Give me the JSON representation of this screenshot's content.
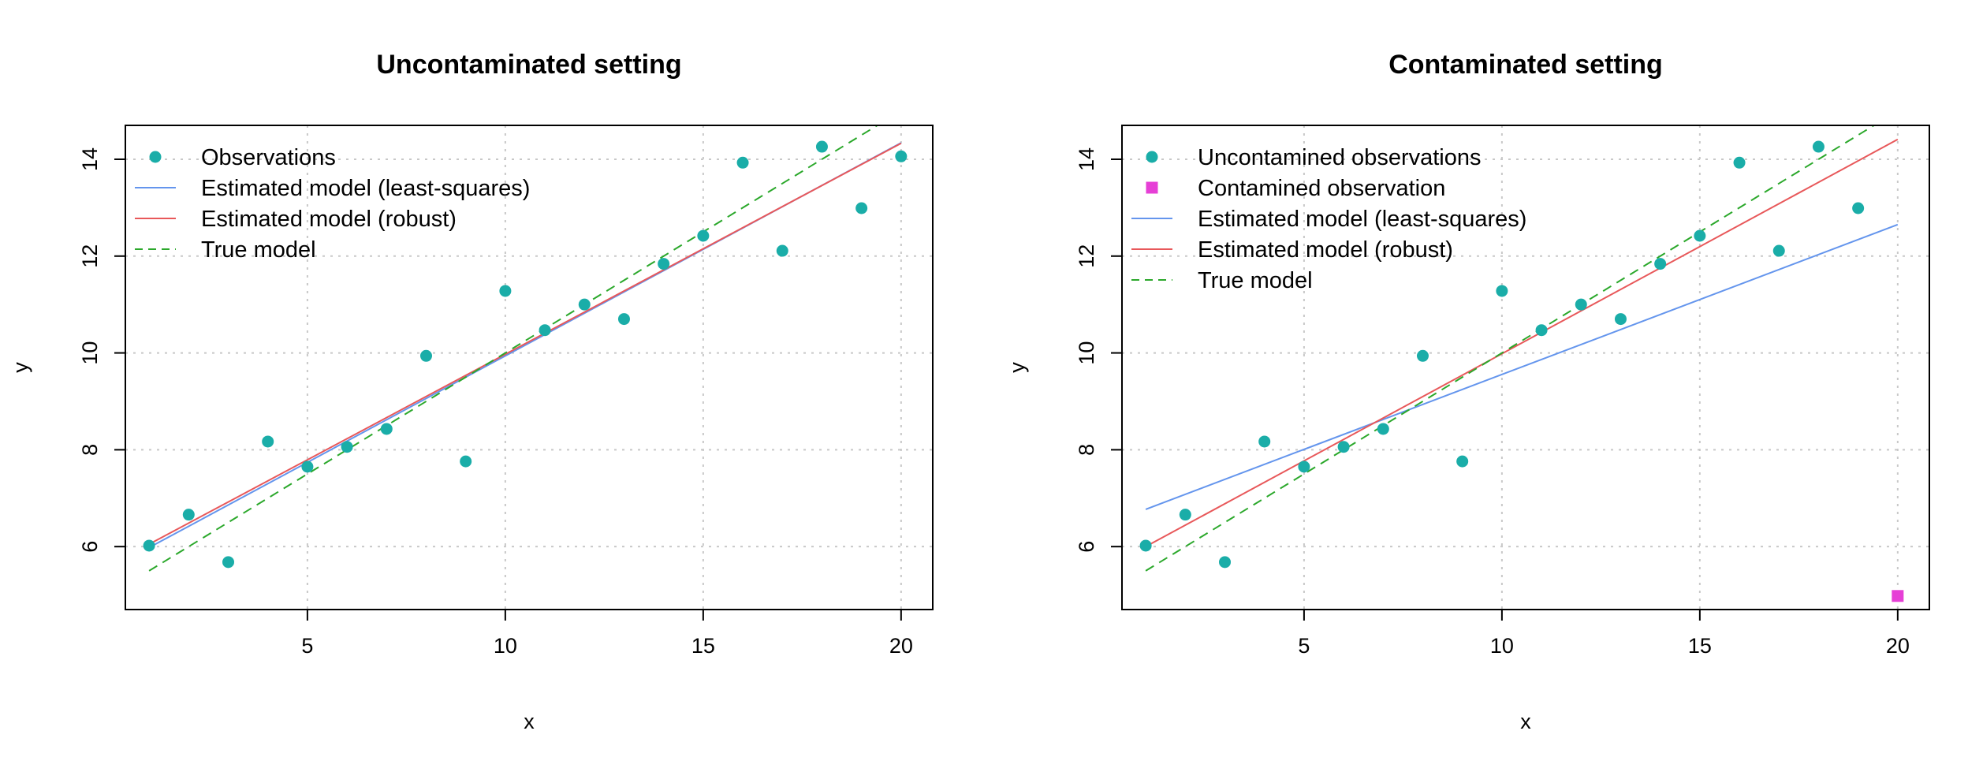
{
  "chart_data": [
    {
      "type": "scatter",
      "title": "Uncontaminated setting",
      "xlabel": "x",
      "ylabel": "y",
      "xlim": [
        0.4,
        20.8
      ],
      "ylim": [
        4.7,
        14.7
      ],
      "xticks": [
        5,
        10,
        15,
        20
      ],
      "yticks": [
        6,
        8,
        10,
        12,
        14
      ],
      "grid": true,
      "legend_position": "top-left",
      "series": [
        {
          "name": "Observations",
          "kind": "points",
          "color": "#1AADA8",
          "x": [
            1,
            2,
            3,
            4,
            5,
            6,
            7,
            8,
            9,
            10,
            11,
            12,
            13,
            14,
            15,
            16,
            17,
            18,
            19,
            20
          ],
          "y": [
            6.02,
            6.66,
            5.68,
            8.17,
            7.65,
            8.06,
            8.43,
            9.94,
            7.76,
            11.28,
            10.47,
            11.0,
            10.7,
            11.84,
            12.42,
            13.93,
            12.11,
            14.26,
            12.99,
            14.06
          ]
        },
        {
          "name": "Estimated model (least-squares)",
          "kind": "line",
          "style": "solid",
          "color": "#6495ED",
          "x": [
            1,
            20
          ],
          "y": [
            5.98,
            14.34
          ]
        },
        {
          "name": "Estimated model (robust)",
          "kind": "line",
          "style": "solid",
          "color": "#E8585A",
          "x": [
            1,
            20
          ],
          "y": [
            6.05,
            14.33
          ]
        },
        {
          "name": "True model",
          "kind": "line",
          "style": "dashed",
          "color": "#2BA82B",
          "x": [
            1,
            20
          ],
          "y": [
            5.5,
            15.0
          ]
        }
      ]
    },
    {
      "type": "scatter",
      "title": "Contaminated setting",
      "xlabel": "x",
      "ylabel": "y",
      "xlim": [
        0.4,
        20.8
      ],
      "ylim": [
        4.7,
        14.7
      ],
      "xticks": [
        5,
        10,
        15,
        20
      ],
      "yticks": [
        6,
        8,
        10,
        12,
        14
      ],
      "grid": true,
      "legend_position": "top-left",
      "series": [
        {
          "name": "Uncontamined observations",
          "kind": "points",
          "color": "#1AADA8",
          "x": [
            1,
            2,
            3,
            4,
            5,
            6,
            7,
            8,
            9,
            10,
            11,
            12,
            13,
            14,
            15,
            16,
            17,
            18,
            19
          ],
          "y": [
            6.02,
            6.66,
            5.68,
            8.17,
            7.65,
            8.06,
            8.43,
            9.94,
            7.76,
            11.28,
            10.47,
            11.0,
            10.7,
            11.84,
            12.42,
            13.93,
            12.11,
            14.26,
            12.99
          ]
        },
        {
          "name": "Contamined observation",
          "kind": "squares",
          "color": "#E63FD6",
          "x": [
            20
          ],
          "y": [
            4.98
          ]
        },
        {
          "name": "Estimated model (least-squares)",
          "kind": "line",
          "style": "solid",
          "color": "#6495ED",
          "x": [
            1,
            20
          ],
          "y": [
            6.77,
            12.65
          ]
        },
        {
          "name": "Estimated model (robust)",
          "kind": "line",
          "style": "solid",
          "color": "#E8585A",
          "x": [
            1,
            20
          ],
          "y": [
            6.0,
            14.41
          ]
        },
        {
          "name": "True model",
          "kind": "line",
          "style": "dashed",
          "color": "#2BA82B",
          "x": [
            1,
            20
          ],
          "y": [
            5.5,
            15.0
          ]
        }
      ]
    }
  ]
}
